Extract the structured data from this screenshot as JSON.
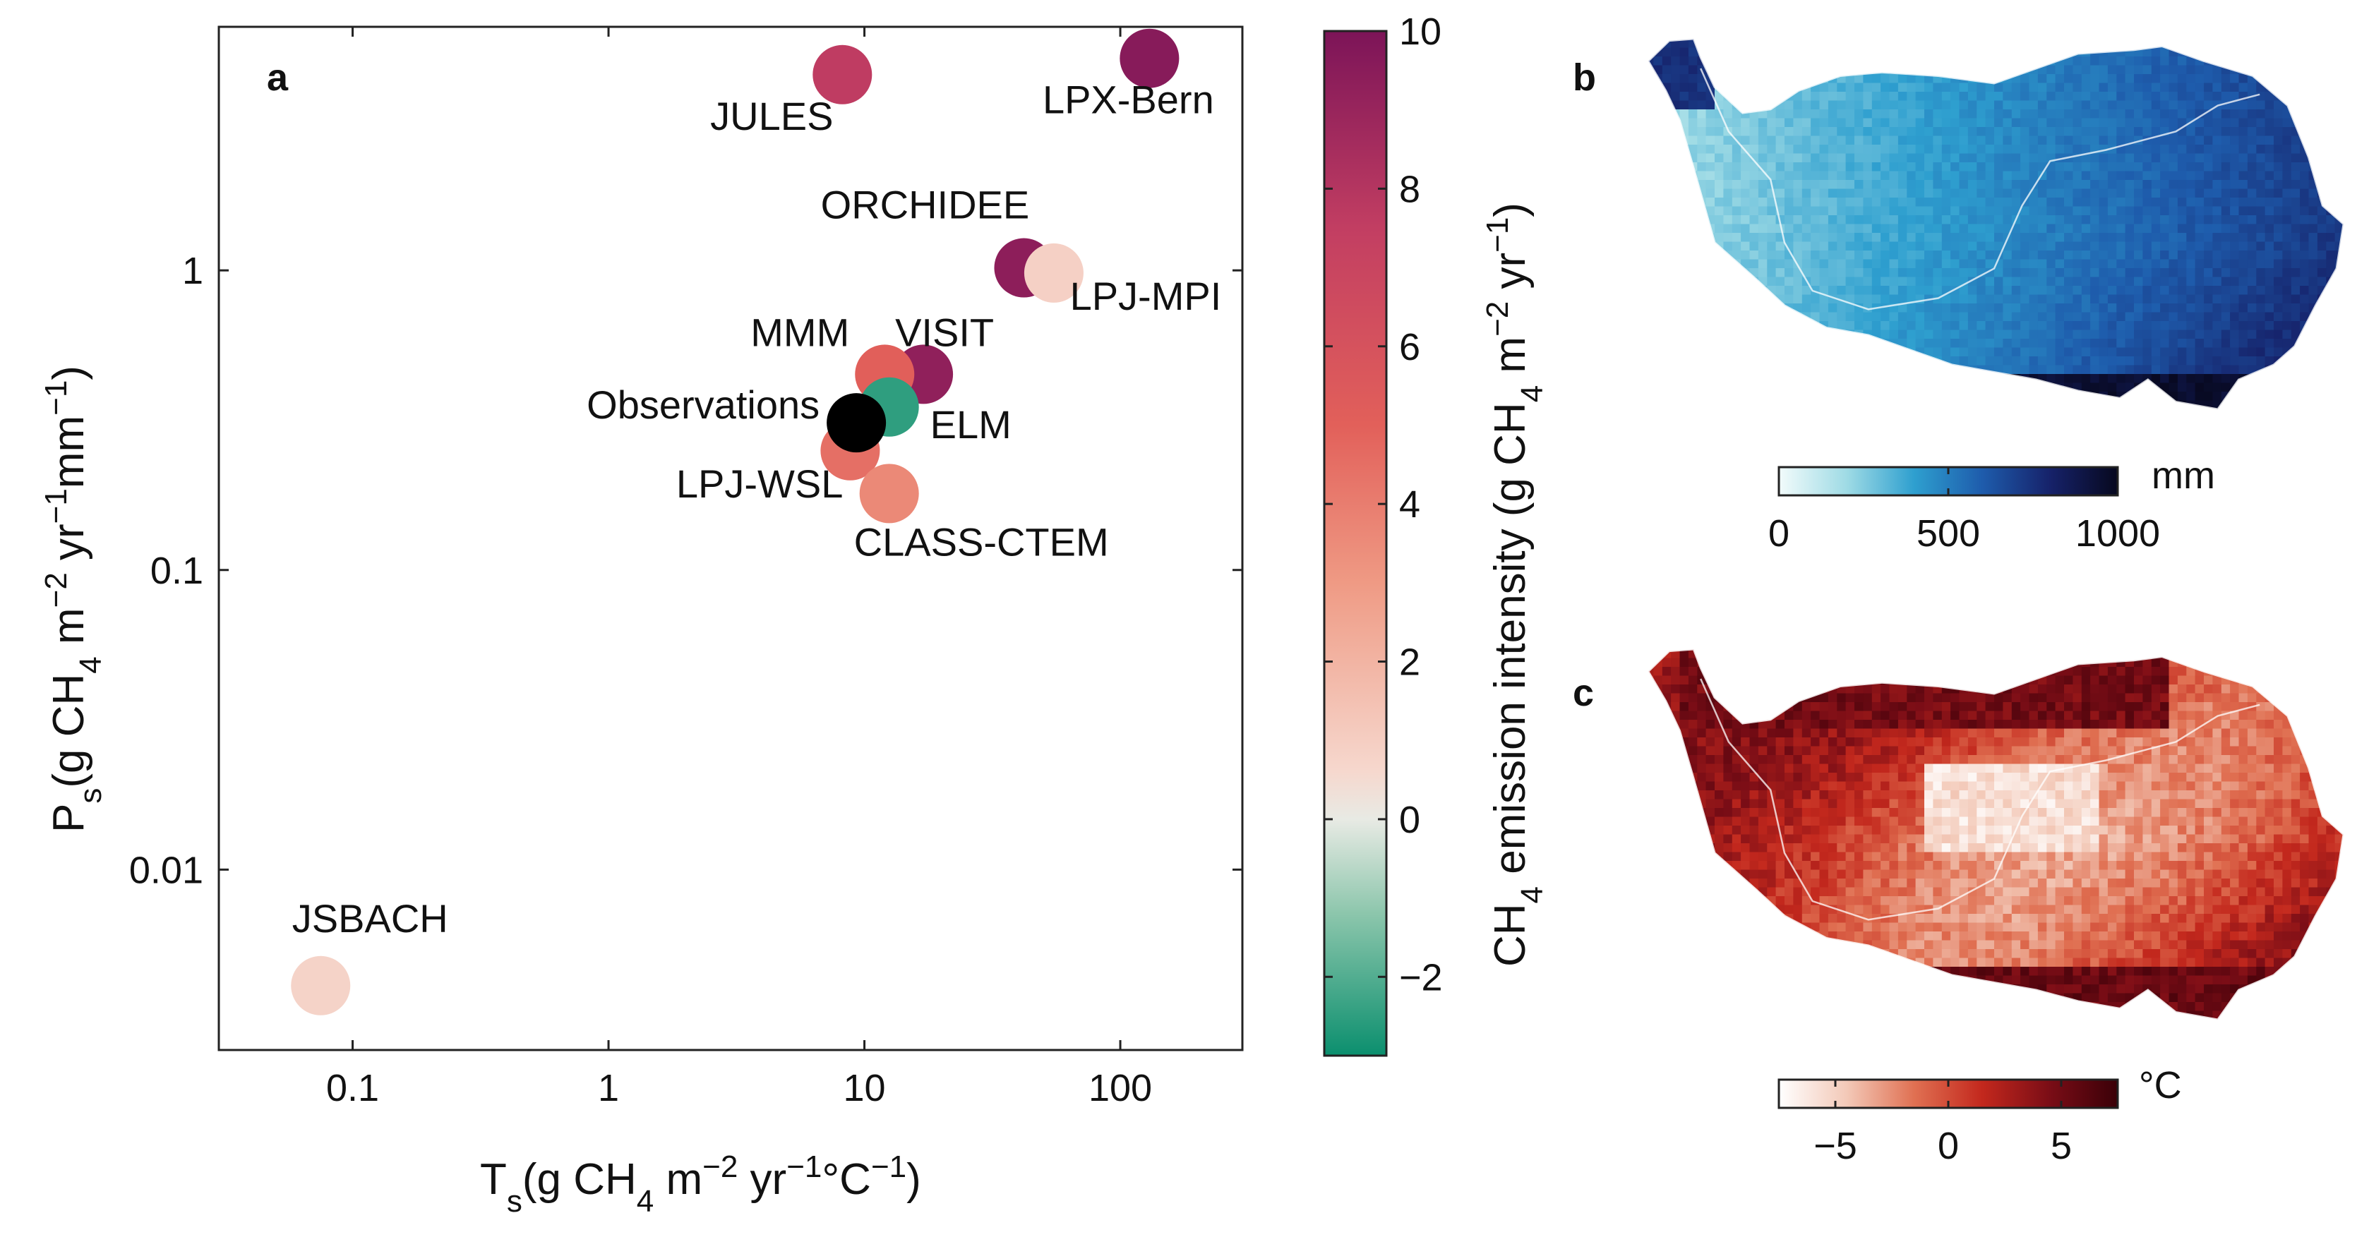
{
  "chart_data": [
    {
      "panel": "a",
      "type": "scatter",
      "x_scale": "log",
      "y_scale": "log",
      "xlim": [
        0.03,
        300
      ],
      "ylim": [
        0.0025,
        6.5
      ],
      "x_ticks": [
        {
          "value": 0.1,
          "label": "0.1"
        },
        {
          "value": 1,
          "label": "1"
        },
        {
          "value": 10,
          "label": "10"
        },
        {
          "value": 100,
          "label": "100"
        }
      ],
      "y_ticks": [
        {
          "value": 0.01,
          "label": "0.01"
        },
        {
          "value": 0.1,
          "label": "0.1"
        },
        {
          "value": 1,
          "label": "1"
        }
      ],
      "xlabel": {
        "base": "T",
        "sub": "s",
        "main": "(g CH",
        "sub2": "4",
        "after": " m",
        "sup1": "−2",
        "mid": " yr",
        "sup2": "−1",
        "tail": "°C",
        "sup3": "−1",
        "close": ")"
      },
      "ylabel": {
        "base": "P",
        "sub": "s",
        "main": "(g CH",
        "sub2": "4",
        "after": " m",
        "sup1": "−2",
        "mid": " yr",
        "sup2": "−1",
        "tail": "mm",
        "sup3": "−1",
        "close": ")"
      },
      "points": [
        {
          "name": "JULES",
          "x": 8.2,
          "y": 4.5,
          "intensity": 7.6
        },
        {
          "name": "LPX-Bern",
          "x": 130,
          "y": 5.1,
          "intensity": 9.6
        },
        {
          "name": "ORCHIDEE",
          "x": 42,
          "y": 1.02,
          "intensity": 9.4
        },
        {
          "name": "LPJ-MPI",
          "x": 55,
          "y": 0.98,
          "intensity": 0.9
        },
        {
          "name": "VISIT",
          "x": 17,
          "y": 0.45,
          "intensity": 9.3
        },
        {
          "name": "MMM",
          "x": 12,
          "y": 0.45,
          "intensity": 5.1
        },
        {
          "name": "ELM",
          "x": 12.5,
          "y": 0.35,
          "intensity": -2.5
        },
        {
          "name": "LPJ-WSL",
          "x": 8.8,
          "y": 0.25,
          "intensity": 4.5
        },
        {
          "name": "CLASS-CTEM",
          "x": 12.5,
          "y": 0.18,
          "intensity": 3.6
        },
        {
          "name": "Observations",
          "x": 9.3,
          "y": 0.31,
          "intensity": null,
          "color": "#000000"
        },
        {
          "name": "JSBACH",
          "x": 0.075,
          "y": 0.0041,
          "intensity": 0.8
        }
      ],
      "colorbar": {
        "title": {
          "pre": "CH",
          "sub": "4",
          "main": " emission intensity (g CH",
          "sub2": "4",
          "after": " m",
          "sup1": "−2",
          "mid": " yr",
          "sup2": "−1",
          "close": ")"
        },
        "range": [
          -3,
          10
        ],
        "ticks": [
          {
            "value": -2,
            "label": "−2"
          },
          {
            "value": 0,
            "label": "0"
          },
          {
            "value": 2,
            "label": "2"
          },
          {
            "value": 4,
            "label": "4"
          },
          {
            "value": 6,
            "label": "6"
          },
          {
            "value": 8,
            "label": "8"
          },
          {
            "value": 10,
            "label": "10"
          }
        ],
        "stops": [
          {
            "value": -3,
            "color": "#0b8f6e"
          },
          {
            "value": -1.2,
            "color": "#8cc6ac"
          },
          {
            "value": 0,
            "color": "#e8eae4"
          },
          {
            "value": 0.6,
            "color": "#f6d8ce"
          },
          {
            "value": 3,
            "color": "#ef9a84"
          },
          {
            "value": 5,
            "color": "#e2605a"
          },
          {
            "value": 7.5,
            "color": "#c23e62"
          },
          {
            "value": 10,
            "color": "#7c1458"
          }
        ]
      }
    },
    {
      "panel": "b",
      "type": "heatmap",
      "colorbar": {
        "unit": "mm",
        "range": [
          0,
          1000
        ],
        "ticks": [
          {
            "value": 0,
            "label": "0"
          },
          {
            "value": 500,
            "label": "500"
          },
          {
            "value": 1000,
            "label": "1000"
          }
        ],
        "colors": [
          "#f2fbfb",
          "#9fdbe5",
          "#2e9fcf",
          "#1e5cac",
          "#16226a",
          "#07081e"
        ]
      }
    },
    {
      "panel": "c",
      "type": "heatmap",
      "colorbar": {
        "unit": "°C",
        "range": [
          -7.5,
          7.5
        ],
        "ticks": [
          {
            "value": -5,
            "label": "−5"
          },
          {
            "value": 0,
            "label": "0"
          },
          {
            "value": 5,
            "label": "5"
          }
        ],
        "colors": [
          "#ffffff",
          "#f3c9b8",
          "#e07052",
          "#c3281d",
          "#7a0d16",
          "#3a0008"
        ]
      }
    }
  ]
}
